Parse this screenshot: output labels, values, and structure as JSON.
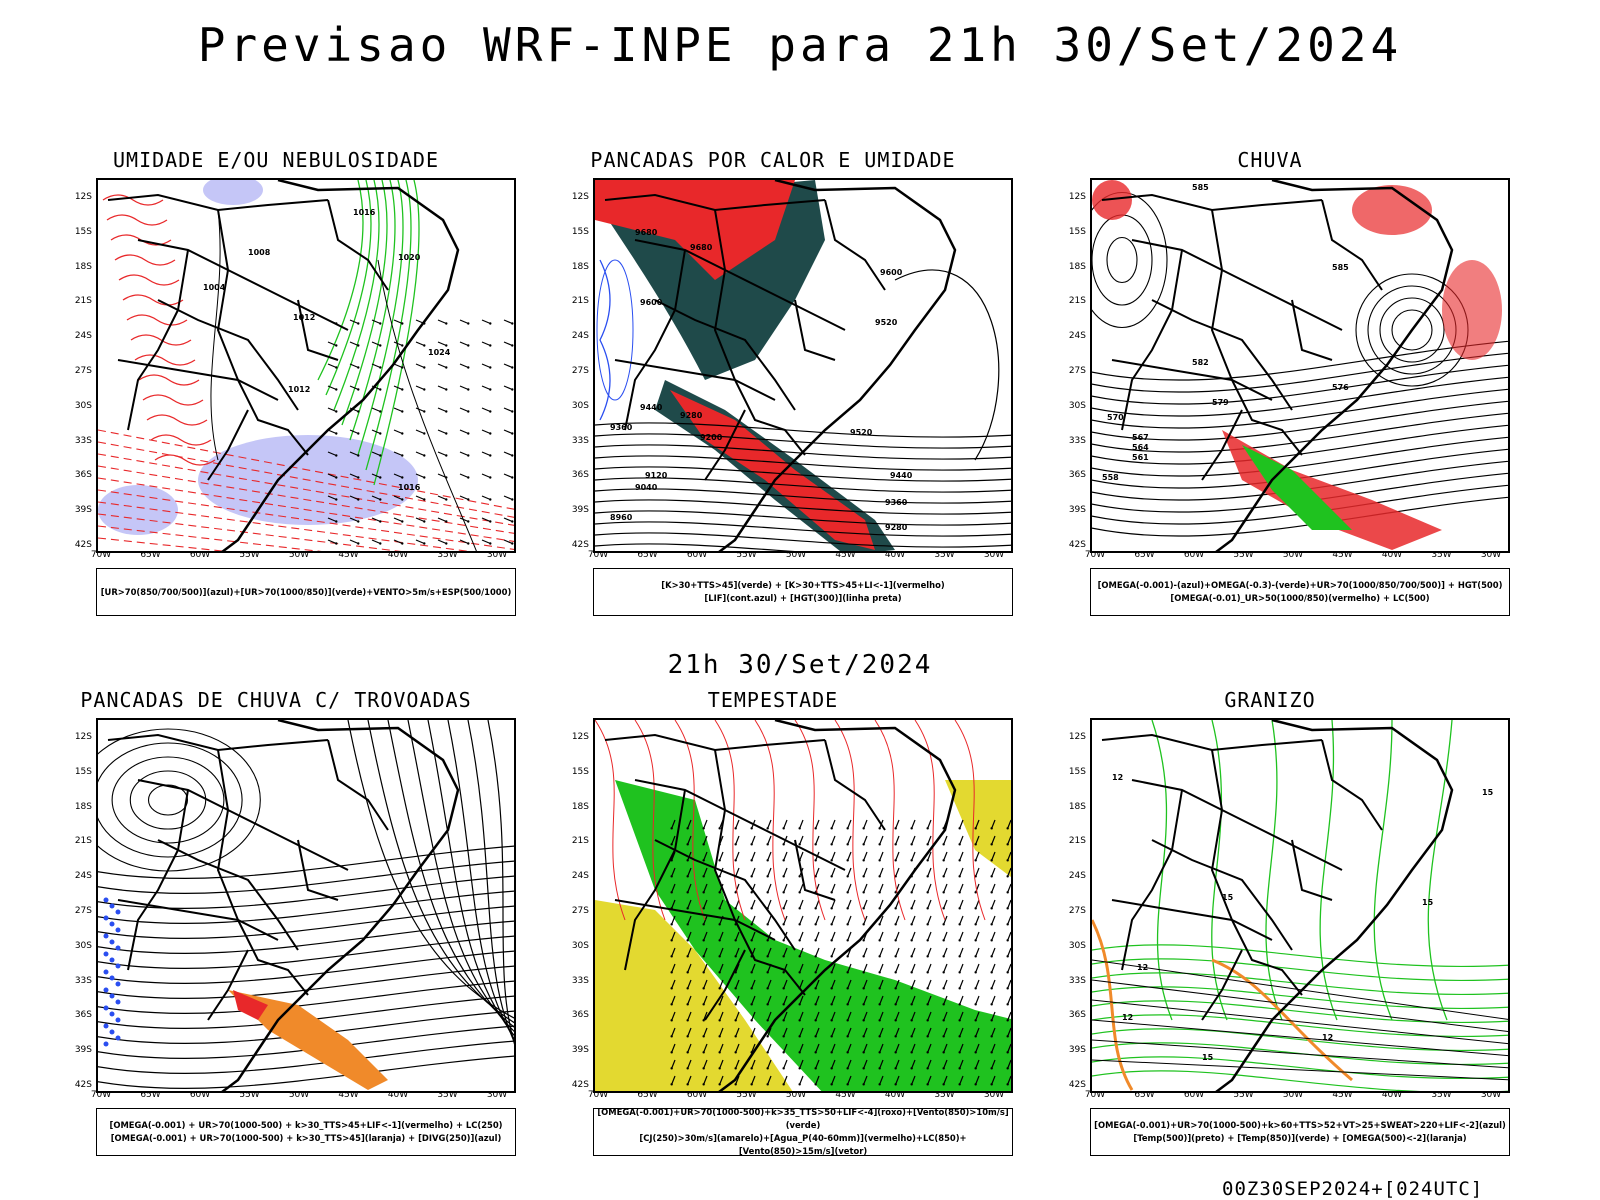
{
  "title": "Previsao WRF-INPE  para 21h 30/Set/2024",
  "mid_title": "21h 30/Set/2024",
  "footer": "00Z30SEP2024+[024UTC]",
  "axes": {
    "lat_labels": [
      "12S",
      "15S",
      "18S",
      "21S",
      "24S",
      "27S",
      "30S",
      "33S",
      "36S",
      "39S",
      "42S"
    ],
    "lon_labels": [
      "70W",
      "65W",
      "60W",
      "55W",
      "50W",
      "45W",
      "40W",
      "35W",
      "30W"
    ]
  },
  "panels": [
    {
      "title": "UMIDADE E/OU NEBULOSIDADE",
      "legend": [
        "[UR>70(850/700/500)](azul)+[UR>70(1000/850)](verde)+VENTO>5m/s+ESP(500/1000)"
      ],
      "contour_labels": [
        "1016",
        "1008",
        "1004",
        "1012",
        "1020",
        "1024",
        "1012",
        "1016"
      ]
    },
    {
      "title": "PANCADAS POR CALOR E UMIDADE",
      "legend": [
        "[K>30+TTS>45](verde) + [K>30+TTS>45+LI<-1](vermelho)",
        "[LIF](cont.azul) + [HGT(300)](linha preta)"
      ],
      "contour_labels": [
        "9680",
        "9680",
        "9600",
        "9600",
        "9520",
        "9440",
        "9360",
        "9280",
        "9200",
        "9120",
        "9040",
        "8960",
        "9520",
        "9440",
        "9360",
        "9280"
      ]
    },
    {
      "title": "CHUVA",
      "legend": [
        "[OMEGA(-0.001)-(azul)+OMEGA(-0.3)-(verde)+UR>70(1000/850/700/500)] + HGT(500)",
        "[OMEGA(-0.01)_UR>50(1000/850)(vermelho) + LC(500)"
      ],
      "contour_labels": [
        "585",
        "585",
        "582",
        "579",
        "576",
        "570",
        "567",
        "564",
        "561",
        "558"
      ]
    },
    {
      "title": "PANCADAS DE CHUVA C/ TROVOADAS",
      "legend": [
        "[OMEGA(-0.001) + UR>70(1000-500) + k>30_TTS>45+LIF<-1](vermelho) + LC(250)",
        "[OMEGA(-0.001) + UR>70(1000-500) + k>30_TTS>45](laranja) + [DIVG(250)](azul)"
      ],
      "contour_labels": []
    },
    {
      "title": "TEMPESTADE",
      "legend": [
        "[OMEGA(-0.001)+UR>70(1000-500)+k>35_TTS>50+LIF<-4](roxo)+[Vento(850)>10m/s](verde)",
        "[CJ(250)>30m/s](amarelo)+[Agua_P(40-60mm)](vermelho)+LC(850)+[Vento(850)>15m/s](vetor)"
      ],
      "contour_labels": []
    },
    {
      "title": "GRANIZO",
      "legend": [
        "[OMEGA(-0.001)+UR>70(1000-500)+k>60+TTS>52+VT>25+SWEAT>220+LIF<-2](azul)",
        "[Temp(500)](preto) + [Temp(850)](verde) + [OMEGA(500)<-2](laranja)"
      ],
      "contour_labels": [
        "12",
        "15",
        "12",
        "15",
        "12",
        "15",
        "12",
        "15"
      ]
    }
  ],
  "colors": {
    "coast": "#000000",
    "red": "#e8282a",
    "green": "#1fc21f",
    "blue": "#2a4ef0",
    "lightblue": "#b7b8f5",
    "darkteal": "#1f4a4a",
    "yellow": "#e3d930",
    "orange": "#f08a2a"
  }
}
